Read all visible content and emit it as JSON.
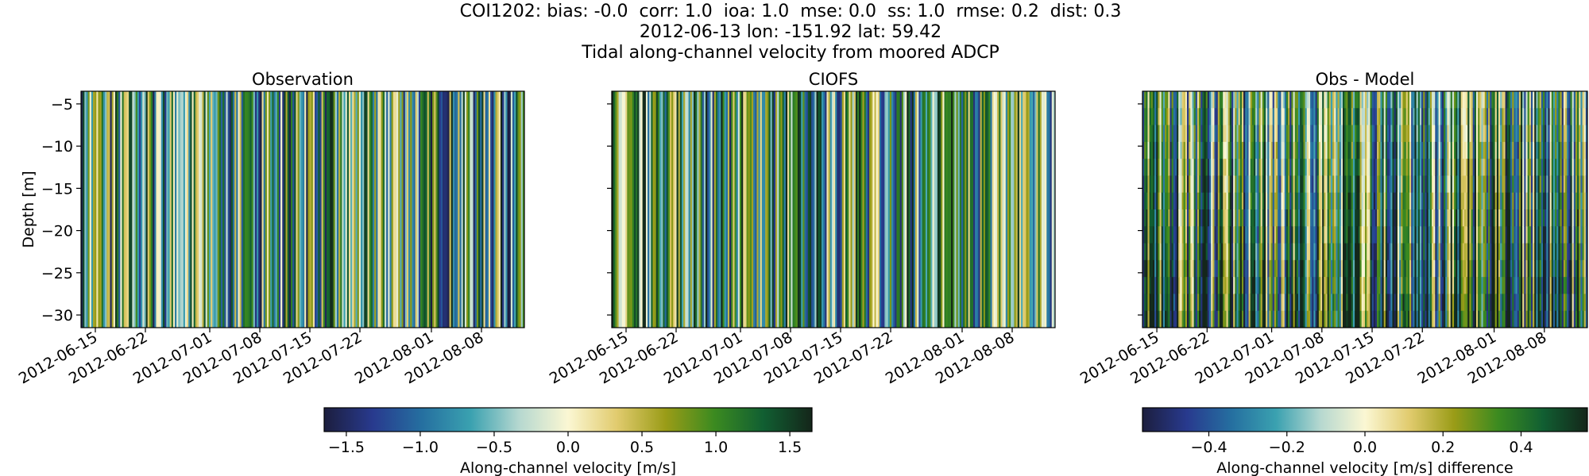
{
  "title": {
    "line1": "COI1202: bias: -0.0  corr: 1.0  ioa: 1.0  mse: 0.0  ss: 1.0  rmse: 0.2  dist: 0.3",
    "line2": "2012-06-13 lon: -151.92 lat: 59.42",
    "line3": "Tidal along-channel velocity from moored ADCP"
  },
  "chart_data": [
    {
      "type": "heatmap",
      "title": "Observation",
      "ylabel": "Depth [m]",
      "xlabel": "",
      "x_ticks": [
        "2012-06-15",
        "2012-06-22",
        "2012-07-01",
        "2012-07-08",
        "2012-07-15",
        "2012-07-22",
        "2012-08-01",
        "2012-08-08"
      ],
      "xlim": [
        "2012-06-13",
        "2012-08-14"
      ],
      "y_ticks": [
        -5,
        -10,
        -15,
        -20,
        -25,
        -30
      ],
      "ylim": [
        -31.5,
        -3.5
      ],
      "value_range": [
        -1.65,
        1.65
      ],
      "colorbar": "velocity"
    },
    {
      "type": "heatmap",
      "title": "CIOFS",
      "ylabel": "",
      "xlabel": "",
      "x_ticks": [
        "2012-06-15",
        "2012-06-22",
        "2012-07-01",
        "2012-07-08",
        "2012-07-15",
        "2012-07-22",
        "2012-08-01",
        "2012-08-08"
      ],
      "xlim": [
        "2012-06-13",
        "2012-08-14"
      ],
      "y_ticks": [
        -5,
        -10,
        -15,
        -20,
        -25,
        -30
      ],
      "ylim": [
        -31.5,
        -3.5
      ],
      "value_range": [
        -1.65,
        1.65
      ],
      "colorbar": "velocity"
    },
    {
      "type": "heatmap",
      "title": "Obs - Model",
      "ylabel": "",
      "xlabel": "",
      "x_ticks": [
        "2012-06-15",
        "2012-06-22",
        "2012-07-01",
        "2012-07-08",
        "2012-07-15",
        "2012-07-22",
        "2012-08-01",
        "2012-08-08"
      ],
      "xlim": [
        "2012-06-13",
        "2012-08-14"
      ],
      "y_ticks": [
        -5,
        -10,
        -15,
        -20,
        -25,
        -30
      ],
      "ylim": [
        -31.5,
        -3.5
      ],
      "value_range": [
        -0.57,
        0.57
      ],
      "colorbar": "difference"
    }
  ],
  "colorbars": {
    "velocity": {
      "label": "Along-channel velocity [m/s]",
      "ticks": [
        "−1.5",
        "−1.0",
        "−0.5",
        "0.0",
        "0.5",
        "1.0",
        "1.5"
      ],
      "tick_values": [
        -1.5,
        -1.0,
        -0.5,
        0.0,
        0.5,
        1.0,
        1.5
      ],
      "range": [
        -1.65,
        1.65
      ]
    },
    "difference": {
      "label": "Along-channel velocity [m/s] difference",
      "ticks": [
        "−0.4",
        "−0.2",
        "0.0",
        "0.2",
        "0.4"
      ],
      "tick_values": [
        -0.4,
        -0.2,
        0.0,
        0.2,
        0.4
      ],
      "range": [
        -0.57,
        0.57
      ]
    }
  },
  "y_tick_labels": [
    "−5",
    "−10",
    "−15",
    "−20",
    "−25",
    "−30"
  ],
  "colormap": [
    "#1c1e3e",
    "#283a8e",
    "#256fa0",
    "#3aa1b0",
    "#b6d8d0",
    "#fbf7d3",
    "#e1cb6e",
    "#9a9c17",
    "#3b8a20",
    "#115f32",
    "#14261a"
  ]
}
